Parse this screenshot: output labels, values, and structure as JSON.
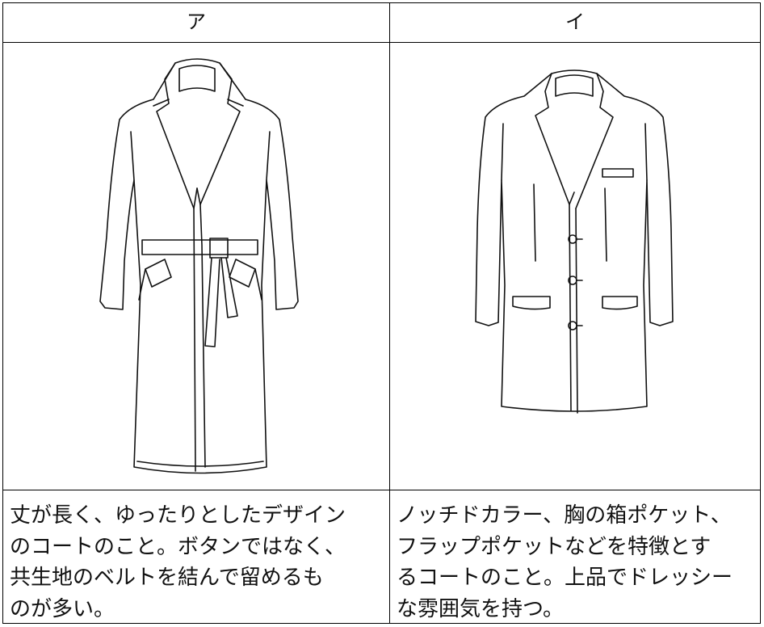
{
  "table": {
    "header": [
      "ア",
      "イ"
    ],
    "descriptions": [
      {
        "lines": [
          "丈が長く、ゆったりとしたデザイン",
          "のコートのこと。ボタンではなく、",
          "共生地のベルトを結んで留めるも",
          "のが多い。"
        ]
      },
      {
        "lines": [
          "ノッチドカラー、胸の箱ポケット、",
          "フラップポケットなどを特徴とす",
          "るコートのこと。上品でドレッシー",
          "な雰囲気を持つ。"
        ]
      }
    ]
  }
}
